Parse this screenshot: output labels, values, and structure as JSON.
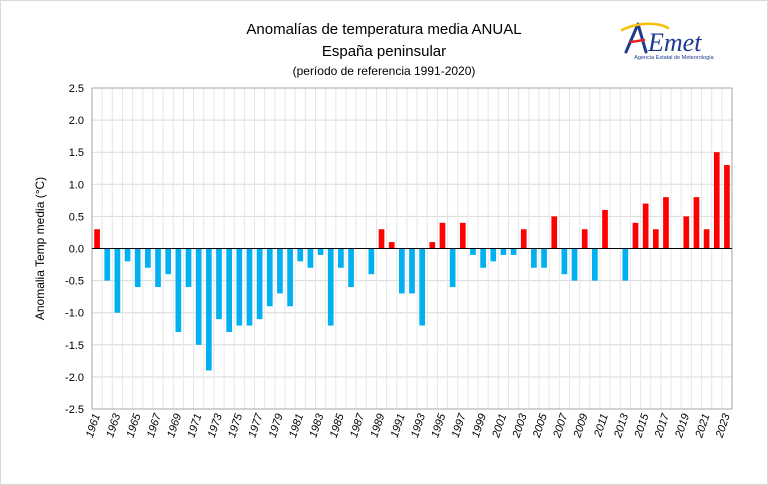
{
  "chart_data": {
    "type": "bar",
    "title": "Anomalías de temperatura media ANUAL",
    "subtitle": "España peninsular",
    "note": "(período de referencia 1991-2020)",
    "ylabel": "Anomalia Temp media (°C)",
    "xlabel": "",
    "ylim": [
      -2.5,
      2.5
    ],
    "yticks": [
      "2.5",
      "2.0",
      "1.5",
      "1.0",
      "0.5",
      "0.0",
      "-0.5",
      "-1.0",
      "-1.5",
      "-2.0",
      "-2.5"
    ],
    "grid": true,
    "legend": "none",
    "colors": {
      "positive": "#ff0000",
      "negative": "#00b0f0"
    },
    "categories": [
      1961,
      1962,
      1963,
      1964,
      1965,
      1966,
      1967,
      1968,
      1969,
      1970,
      1971,
      1972,
      1973,
      1974,
      1975,
      1976,
      1977,
      1978,
      1979,
      1980,
      1981,
      1982,
      1983,
      1984,
      1985,
      1986,
      1987,
      1988,
      1989,
      1990,
      1991,
      1992,
      1993,
      1994,
      1995,
      1996,
      1997,
      1998,
      1999,
      2000,
      2001,
      2002,
      2003,
      2004,
      2005,
      2006,
      2007,
      2008,
      2009,
      2010,
      2011,
      2012,
      2013,
      2014,
      2015,
      2016,
      2017,
      2018,
      2019,
      2020,
      2021,
      2022,
      2023
    ],
    "values": [
      0.3,
      -0.5,
      -1.0,
      -0.2,
      -0.6,
      -0.3,
      -0.6,
      -0.4,
      -1.3,
      -0.6,
      -1.5,
      -1.9,
      -1.1,
      -1.3,
      -1.2,
      -1.2,
      -1.1,
      -0.9,
      -0.7,
      -0.9,
      -0.2,
      -0.3,
      -0.1,
      -1.2,
      -0.3,
      -0.6,
      0.0,
      -0.4,
      0.3,
      0.1,
      -0.7,
      -0.7,
      -1.2,
      0.1,
      0.4,
      -0.6,
      0.4,
      -0.1,
      -0.3,
      -0.2,
      -0.1,
      -0.1,
      0.3,
      -0.3,
      -0.3,
      0.5,
      -0.4,
      -0.5,
      0.3,
      -0.5,
      0.6,
      0.0,
      -0.5,
      0.4,
      0.7,
      0.3,
      0.8,
      0.0,
      0.5,
      0.8,
      0.3,
      1.5,
      1.3
    ],
    "xtick_labels": [
      "1961",
      "1963",
      "1965",
      "1967",
      "1969",
      "1971",
      "1973",
      "1975",
      "1977",
      "1979",
      "1981",
      "1983",
      "1985",
      "1987",
      "1989",
      "1991",
      "1993",
      "1995",
      "1997",
      "1999",
      "2001",
      "2003",
      "2005",
      "2007",
      "2009",
      "2011",
      "2013",
      "2015",
      "2017",
      "2019",
      "2021",
      "2023"
    ]
  },
  "logo": {
    "text": "AEmet",
    "subtext": "Agencia Estatal de Meteorología"
  }
}
